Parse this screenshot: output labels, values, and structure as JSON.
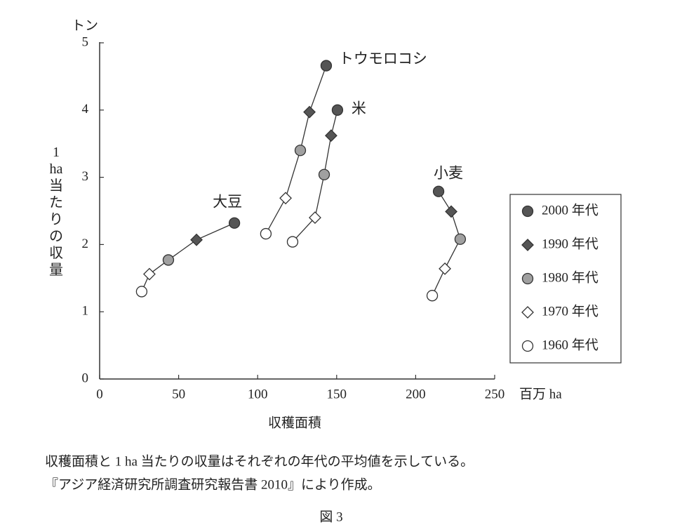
{
  "chart_data": {
    "type": "scatter",
    "y_unit": "トン",
    "y_label": "1 ha 当たりの収量",
    "x_label": "収穫面積",
    "x_unit": "百万 ha",
    "xlim": [
      0,
      250
    ],
    "xticks": [
      0,
      50,
      100,
      150,
      200,
      250
    ],
    "ylim": [
      0,
      5
    ],
    "yticks": [
      0,
      1,
      2,
      3,
      4,
      5
    ],
    "legend_position": "right",
    "legend": [
      {
        "name": "2000 年代",
        "marker": "circle",
        "color": "#555555"
      },
      {
        "name": "1990 年代",
        "marker": "diamond",
        "color": "#555555"
      },
      {
        "name": "1980 年代",
        "marker": "circle",
        "color": "#a0a0a0"
      },
      {
        "name": "1970 年代",
        "marker": "diamond",
        "color": "#ffffff"
      },
      {
        "name": "1960 年代",
        "marker": "circle",
        "color": "#ffffff"
      }
    ],
    "series": [
      {
        "name": "大豆",
        "color": "#333333",
        "x": [
          85.3,
          61.3,
          43.5,
          31.5,
          26.6
        ],
        "values": [
          2.32,
          2.07,
          1.77,
          1.56,
          1.3
        ]
      },
      {
        "name": "トウモロコシ",
        "color": "#333333",
        "x": [
          143.4,
          132.8,
          127.0,
          117.7,
          105.2
        ],
        "values": [
          4.66,
          3.97,
          3.4,
          2.69,
          2.16
        ]
      },
      {
        "name": "米",
        "color": "#333333",
        "x": [
          150.5,
          146.5,
          142.1,
          136.3,
          122.1
        ],
        "values": [
          4.0,
          3.62,
          3.04,
          2.4,
          2.04
        ]
      },
      {
        "name": "小麦",
        "color": "#333333",
        "x": [
          214.5,
          222.5,
          228.2,
          218.5,
          210.5
        ],
        "values": [
          2.79,
          2.49,
          2.08,
          1.64,
          1.24
        ]
      }
    ],
    "notes": [
      "収穫面積と 1 ha 当たりの収量はそれぞれの年代の平均値を示している。",
      "『アジア経済研究所調査研究報告書 2010』により作成。"
    ],
    "caption": "図 3"
  }
}
